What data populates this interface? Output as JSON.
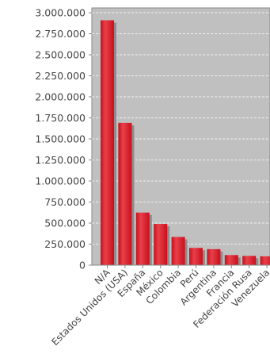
{
  "chart_data": {
    "type": "bar",
    "categories": [
      "N/A",
      "Estados Unidos (USA)",
      "España",
      "México",
      "Colombia",
      "Perú",
      "Argentina",
      "Francia",
      "Federación Rusa",
      "Venezuela"
    ],
    "values": [
      2910000,
      1690000,
      625000,
      490000,
      335000,
      205000,
      190000,
      120000,
      110000,
      105000
    ],
    "y_ticks": [
      "0",
      "250.000",
      "500.000",
      "750.000",
      "1.000.000",
      "1.250.000",
      "1.500.000",
      "1.750.000",
      "2.000.000",
      "2.250.000",
      "2.500.000",
      "2.750.000",
      "3.000.000"
    ],
    "ylim": [
      0,
      3000000
    ],
    "grid": true,
    "colors": {
      "bar": "#c8101c",
      "bar_highlight": "#e8404a",
      "shadow": "#8c8c8c",
      "plot_bg": "#c0c0c0",
      "gridline": "#ffffff"
    }
  }
}
